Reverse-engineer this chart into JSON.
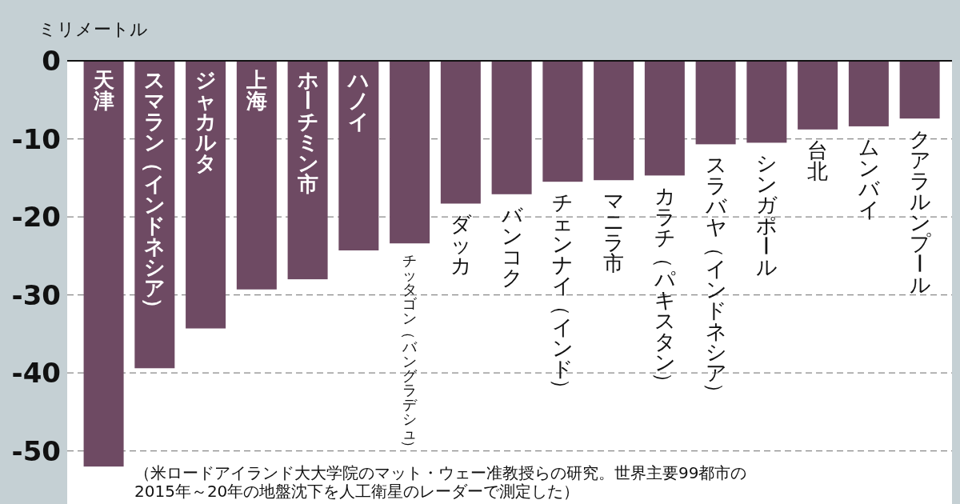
{
  "chart_data": {
    "type": "bar",
    "ylabel": "ミリメートル",
    "categories": [
      "天津",
      "スマラン（インドネシア）",
      "ジャカルタ",
      "上海",
      "ホーチミン市",
      "ハノイ",
      "チッタゴン（バングラデシュ）",
      "ダッカ",
      "バンコク",
      "チェンナイ（インド）",
      "マニラ市",
      "カラチ（パキスタン）",
      "スラバヤ（インドネシア）",
      "シンガポール",
      "台北",
      "ムンバイ",
      "クアラルンプール"
    ],
    "values": [
      -52.0,
      -39.4,
      -34.3,
      -29.3,
      -28.0,
      -24.3,
      -23.4,
      -18.3,
      -17.1,
      -15.5,
      -15.3,
      -14.7,
      -10.7,
      -10.5,
      -8.8,
      -8.4,
      -7.4
    ],
    "color": "#6e4a63",
    "ylim": [
      -56.8,
      0
    ],
    "yticks": [
      0,
      -10,
      -20,
      -30,
      -40,
      -50
    ],
    "grid": "y",
    "annotations": [
      "（米ロードアイランド大大学院のマット・ウェー准教授らの研究。世界主要99都市の",
      "2015年～20年の地盤沈下を人工衛星のレーダーで測定した）"
    ]
  }
}
